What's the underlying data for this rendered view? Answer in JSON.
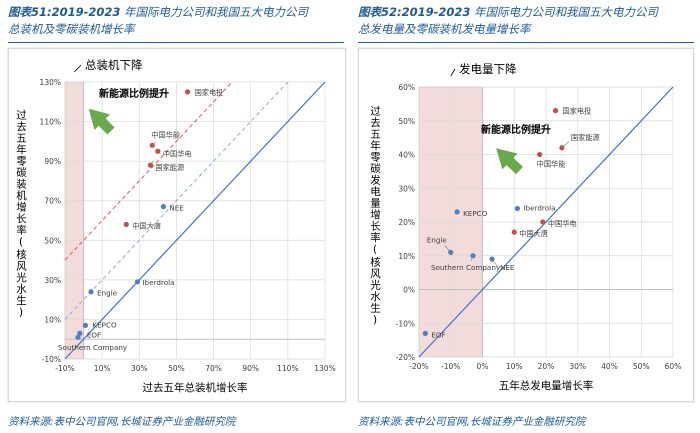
{
  "figures": [
    {
      "num": "图表51:",
      "year": "2019-2023",
      "title_line1": " 年国际电力公司和我国五大电力公司",
      "title_line2": "总装机及零碳装机增长率"
    },
    {
      "num": "图表52:",
      "year": "2019-2023",
      "title_line1": " 年国际电力公司和我国五大电力公司",
      "title_line2": "总发电量及零碳装机发电量增长率"
    }
  ],
  "source": "资料来源:表中公司官网,长城证券产业金融研究院",
  "colors": {
    "title": "#1f5a96",
    "china_dot": "#c0504d",
    "intl_dot": "#4f81bd",
    "shade": "#f2dcdb",
    "diag": "#4472c4",
    "arrow": "#6aa84f",
    "red_dash": "#e6534a",
    "blue_dash": "#8faadc"
  },
  "chart_data": [
    {
      "type": "scatter",
      "title": "",
      "xlabel": "过去五年总装机增长率",
      "ylabel": "过去五年零碳装机增长率(核风光水生)",
      "xlim": [
        -10,
        130
      ],
      "ylim": [
        -10,
        130
      ],
      "x_ticks": [
        "-10%",
        "10%",
        "30%",
        "50%",
        "70%",
        "90%",
        "110%",
        "130%"
      ],
      "y_ticks": [
        "-10%",
        "10%",
        "30%",
        "50%",
        "70%",
        "90%",
        "110%",
        "130%"
      ],
      "shaded_region": {
        "x_from": -10,
        "x_to": 0
      },
      "annotations": [
        {
          "text": "总装机下降",
          "bold": false
        },
        {
          "text": "新能源比例提升",
          "bold": true
        }
      ],
      "reference_lines": [
        {
          "style": "solid",
          "slope": 1,
          "intercept": 0
        },
        {
          "style": "dashed-blue",
          "slope": 1,
          "intercept": 20
        },
        {
          "style": "dashed-red",
          "slope": 1,
          "intercept": 50
        }
      ],
      "points": [
        {
          "label": "国家电投",
          "x": 56,
          "y": 125,
          "group": "china"
        },
        {
          "label": "中国华能",
          "x": 37,
          "y": 98,
          "group": "china"
        },
        {
          "label": "中国华电",
          "x": 40,
          "y": 95,
          "group": "china"
        },
        {
          "label": "国家能源",
          "x": 36,
          "y": 88,
          "group": "china"
        },
        {
          "label": "NEE",
          "x": 43,
          "y": 67,
          "group": "intl"
        },
        {
          "label": "中国大唐",
          "x": 23,
          "y": 58,
          "group": "china"
        },
        {
          "label": "Iberdrola",
          "x": 29,
          "y": 29,
          "group": "intl"
        },
        {
          "label": "Engie",
          "x": 4,
          "y": 24,
          "group": "intl"
        },
        {
          "label": "KEPCO",
          "x": 1,
          "y": 7,
          "group": "intl"
        },
        {
          "label": "EOF",
          "x": -2,
          "y": 3,
          "group": "intl"
        },
        {
          "label": "Southern Company",
          "x": -3,
          "y": 1,
          "group": "intl"
        }
      ]
    },
    {
      "type": "scatter",
      "title": "",
      "xlabel": "五年总发电量增长率",
      "ylabel": "过去五年零碳发电量增长率(核风光水生)",
      "xlim": [
        -20,
        60
      ],
      "ylim": [
        -20,
        60
      ],
      "x_ticks": [
        "-20%",
        "-10%",
        "0%",
        "10%",
        "20%",
        "30%",
        "40%",
        "50%",
        "60%"
      ],
      "y_ticks": [
        "-20%",
        "-10%",
        "0%",
        "10%",
        "20%",
        "30%",
        "40%",
        "50%",
        "60%"
      ],
      "shaded_region": {
        "x_from": -20,
        "x_to": 0
      },
      "annotations": [
        {
          "text": "发电量下降",
          "bold": false
        },
        {
          "text": "新能源比例提升",
          "bold": true
        }
      ],
      "reference_lines": [
        {
          "style": "solid",
          "slope": 1,
          "intercept": 0
        }
      ],
      "points": [
        {
          "label": "国家电投",
          "x": 23,
          "y": 53,
          "group": "china"
        },
        {
          "label": "国家能源",
          "x": 25,
          "y": 42,
          "group": "china"
        },
        {
          "label": "中国华能",
          "x": 18,
          "y": 40,
          "group": "china"
        },
        {
          "label": "KEPCO",
          "x": -8,
          "y": 23,
          "group": "intl"
        },
        {
          "label": "Iberdrola",
          "x": 11,
          "y": 24,
          "group": "intl"
        },
        {
          "label": "中国华电",
          "x": 19,
          "y": 20,
          "group": "china"
        },
        {
          "label": "中国大唐",
          "x": 10,
          "y": 17,
          "group": "china"
        },
        {
          "label": "Engie",
          "x": -10,
          "y": 11,
          "group": "intl"
        },
        {
          "label": "Southern Company",
          "x": -3,
          "y": 10,
          "group": "intl"
        },
        {
          "label": "NEE",
          "x": 3,
          "y": 9,
          "group": "intl"
        },
        {
          "label": "EOF",
          "x": -18,
          "y": -13,
          "group": "intl"
        }
      ]
    }
  ]
}
